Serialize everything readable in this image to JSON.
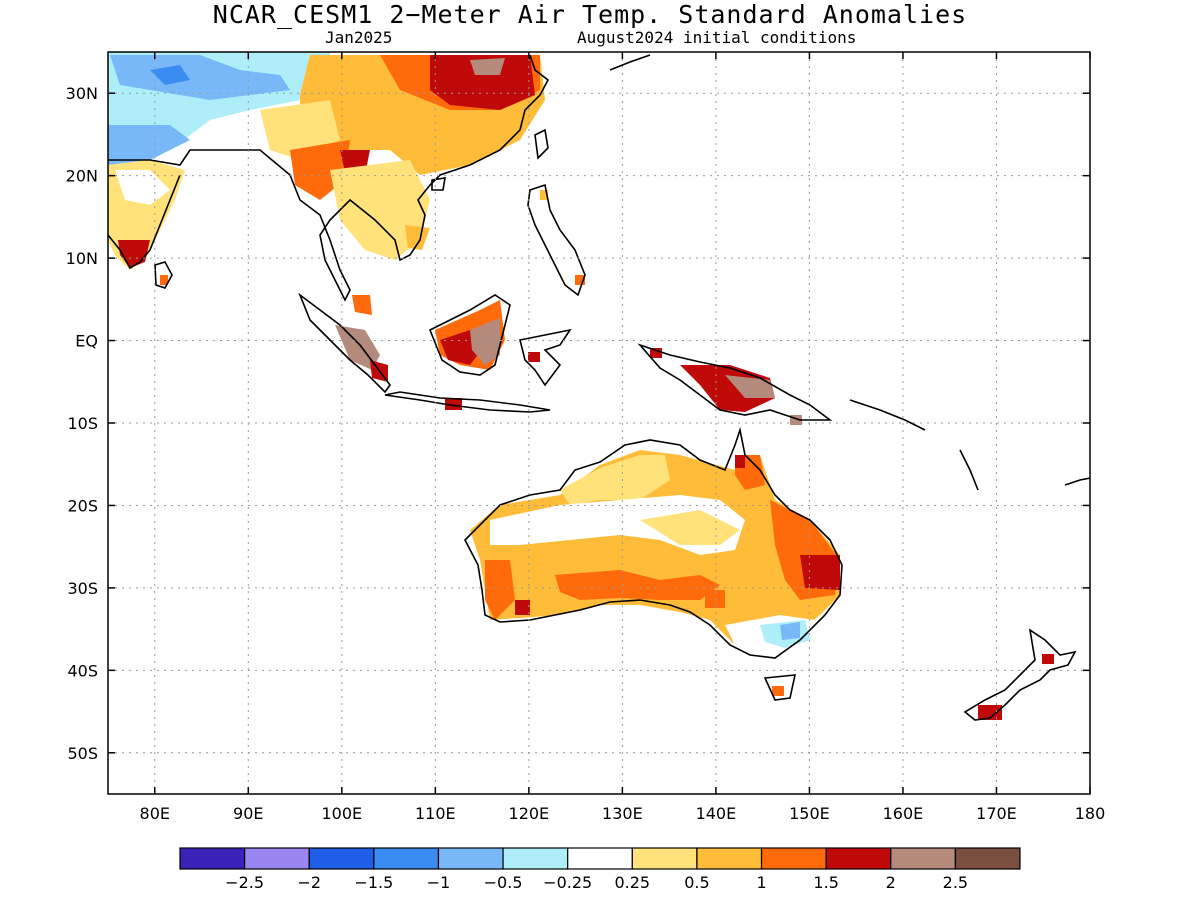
{
  "title": "NCAR_CESM1 2−Meter Air Temp. Standard Anomalies",
  "subtitle_left": "Jan2025",
  "subtitle_right": "August2024 initial conditions",
  "lat_labels": [
    "30N",
    "20N",
    "10N",
    "EQ",
    "10S",
    "20S",
    "30S",
    "40S",
    "50S"
  ],
  "lon_labels": [
    "80E",
    "90E",
    "100E",
    "110E",
    "120E",
    "130E",
    "140E",
    "150E",
    "160E",
    "170E",
    "180"
  ],
  "colorbar": {
    "colors": [
      "#3a22b8",
      "#9a86f2",
      "#1f5ee8",
      "#3a8cf2",
      "#78b8f8",
      "#aeeef8",
      "#ffffff",
      "#ffe27a",
      "#ffbc38",
      "#ff6a0a",
      "#c00a0a",
      "#b48a7c",
      "#7a4e40"
    ],
    "labels": [
      "−2.5",
      "−2",
      "−1.5",
      "−1",
      "−0.5",
      "−0.25",
      "0.25",
      "0.5",
      "1",
      "1.5",
      "2",
      "2.5"
    ]
  },
  "map": {
    "lat_range": [
      "55S",
      "35N"
    ],
    "lon_range": [
      "75E",
      "180"
    ],
    "grid": true
  }
}
